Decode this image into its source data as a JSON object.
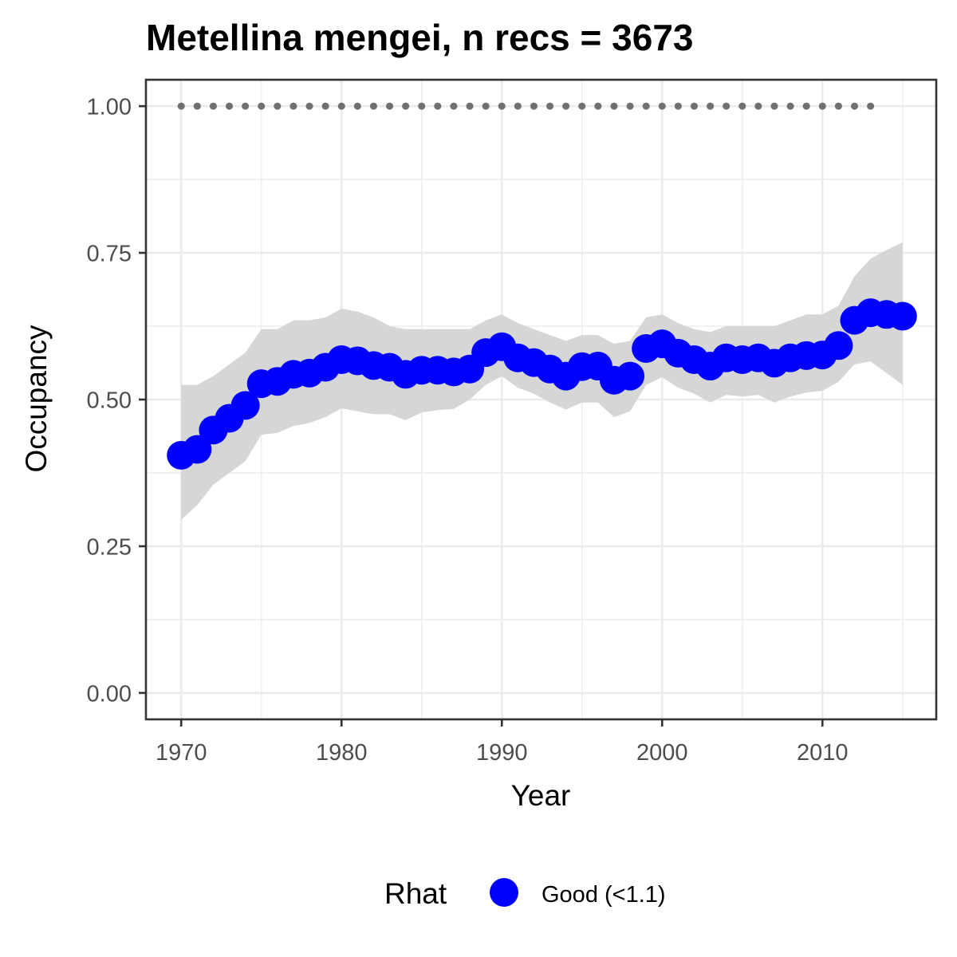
{
  "chart_data": {
    "type": "line",
    "title": "Metellina mengei, n recs = 3673",
    "xlabel": "Year",
    "ylabel": "Occupancy",
    "xlim": [
      1967.8,
      2017.1
    ],
    "ylim": [
      -0.045,
      1.045
    ],
    "x_ticks": [
      1970,
      1980,
      1990,
      2000,
      2010
    ],
    "x_tick_labels": [
      "1970",
      "1980",
      "1990",
      "2000",
      "2010"
    ],
    "y_ticks": [
      0,
      0.25,
      0.5,
      0.75,
      1
    ],
    "y_tick_labels": [
      "0.00",
      "0.25",
      "0.50",
      "0.75",
      "1.00"
    ],
    "grid": true,
    "legend": {
      "position": "bottom",
      "title": "Rhat",
      "entries": [
        {
          "label": "Good (<1.1)",
          "color": "#0000ff"
        }
      ]
    },
    "colors": {
      "points": "#0000ff",
      "band": "#d6d6d6",
      "reference": "#707070",
      "panel_border": "#333333",
      "grid": "#ebebeb"
    },
    "series": [
      {
        "role": "occupancy",
        "x": [
          1970,
          1971,
          1972,
          1973,
          1974,
          1975,
          1976,
          1977,
          1978,
          1979,
          1980,
          1981,
          1982,
          1983,
          1984,
          1985,
          1986,
          1987,
          1988,
          1989,
          1990,
          1991,
          1992,
          1993,
          1994,
          1995,
          1996,
          1997,
          1998,
          1999,
          2000,
          2001,
          2002,
          2003,
          2004,
          2005,
          2006,
          2007,
          2008,
          2009,
          2010,
          2011,
          2012,
          2013,
          2014,
          2015
        ],
        "y": [
          0.405,
          0.415,
          0.448,
          0.468,
          0.49,
          0.527,
          0.531,
          0.543,
          0.545,
          0.555,
          0.568,
          0.566,
          0.558,
          0.555,
          0.543,
          0.55,
          0.55,
          0.547,
          0.552,
          0.58,
          0.59,
          0.571,
          0.563,
          0.552,
          0.54,
          0.556,
          0.557,
          0.533,
          0.54,
          0.587,
          0.595,
          0.579,
          0.568,
          0.557,
          0.571,
          0.568,
          0.571,
          0.562,
          0.571,
          0.575,
          0.576,
          0.592,
          0.635,
          0.648,
          0.645,
          0.642
        ],
        "lower": [
          0.295,
          0.32,
          0.355,
          0.375,
          0.395,
          0.44,
          0.443,
          0.455,
          0.46,
          0.47,
          0.485,
          0.48,
          0.475,
          0.475,
          0.465,
          0.478,
          0.482,
          0.484,
          0.5,
          0.525,
          0.54,
          0.52,
          0.51,
          0.495,
          0.483,
          0.495,
          0.495,
          0.47,
          0.48,
          0.525,
          0.538,
          0.52,
          0.51,
          0.495,
          0.508,
          0.505,
          0.508,
          0.495,
          0.505,
          0.512,
          0.515,
          0.53,
          0.56,
          0.565,
          0.545,
          0.525
        ],
        "upper": [
          0.525,
          0.525,
          0.54,
          0.56,
          0.58,
          0.62,
          0.62,
          0.635,
          0.635,
          0.64,
          0.655,
          0.65,
          0.64,
          0.625,
          0.62,
          0.62,
          0.62,
          0.62,
          0.62,
          0.635,
          0.645,
          0.63,
          0.62,
          0.61,
          0.6,
          0.61,
          0.61,
          0.595,
          0.6,
          0.64,
          0.645,
          0.63,
          0.62,
          0.615,
          0.625,
          0.625,
          0.625,
          0.625,
          0.635,
          0.645,
          0.645,
          0.66,
          0.71,
          0.74,
          0.755,
          0.768
        ]
      },
      {
        "role": "reference",
        "x": [
          1970,
          1971,
          1972,
          1973,
          1974,
          1975,
          1976,
          1977,
          1978,
          1979,
          1980,
          1981,
          1982,
          1983,
          1984,
          1985,
          1986,
          1987,
          1988,
          1989,
          1990,
          1991,
          1992,
          1993,
          1994,
          1995,
          1996,
          1997,
          1998,
          1999,
          2000,
          2001,
          2002,
          2003,
          2004,
          2005,
          2006,
          2007,
          2008,
          2009,
          2010,
          2011,
          2012,
          2013
        ],
        "y": [
          1,
          1,
          1,
          1,
          1,
          1,
          1,
          1,
          1,
          1,
          1,
          1,
          1,
          1,
          1,
          1,
          1,
          1,
          1,
          1,
          1,
          1,
          1,
          1,
          1,
          1,
          1,
          1,
          1,
          1,
          1,
          1,
          1,
          1,
          1,
          1,
          1,
          1,
          1,
          1,
          1,
          1,
          1,
          1
        ]
      }
    ]
  }
}
